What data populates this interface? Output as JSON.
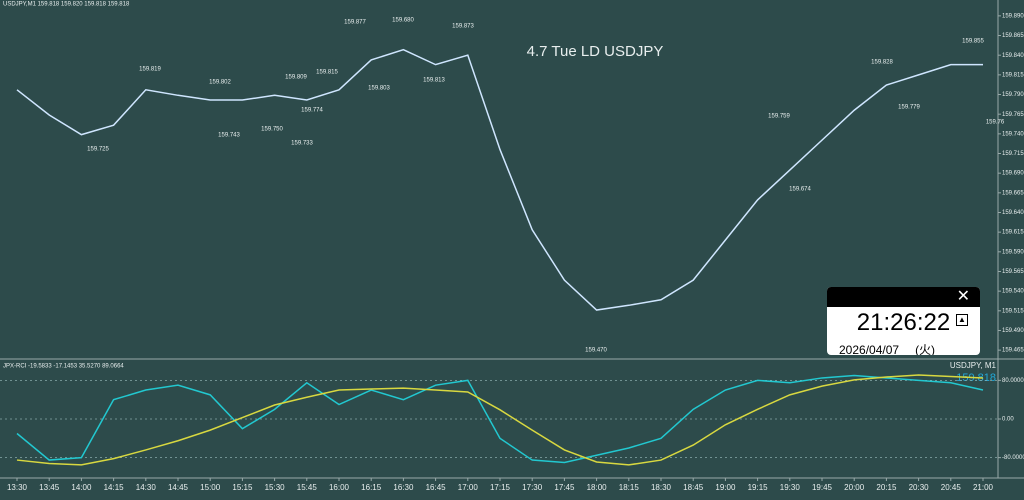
{
  "chart_data": [
    {
      "type": "line",
      "title": "4.7 Tue LD USDJPY",
      "subtitle": "USDJPY,M1  159.818 159.820 159.818 159.818",
      "categories": [
        "13:30",
        "13:45",
        "14:00",
        "14:15",
        "14:30",
        "14:45",
        "15:00",
        "15:15",
        "15:30",
        "15:45",
        "16:00",
        "16:15",
        "16:30",
        "16:45",
        "17:00",
        "17:15",
        "17:30",
        "17:45",
        "18:00",
        "18:15",
        "18:30",
        "18:45",
        "19:00",
        "19:15",
        "19:30",
        "19:45",
        "20:00",
        "20:15",
        "20:30",
        "20:45",
        "21:00"
      ],
      "series": [
        {
          "name": "USDJPY",
          "color": "#cfe6ff",
          "values": [
            159.796,
            159.764,
            159.739,
            159.751,
            159.796,
            159.789,
            159.783,
            159.783,
            159.789,
            159.783,
            159.796,
            159.834,
            159.847,
            159.828,
            159.84,
            159.72,
            159.618,
            159.554,
            159.516,
            159.522,
            159.529,
            159.554,
            159.605,
            159.656,
            159.694,
            159.732,
            159.77,
            159.802,
            159.815,
            159.828,
            159.828
          ]
        }
      ],
      "ylim": [
        159.455,
        159.9
      ],
      "yticks": [
        {
          "value": 159.89,
          "label": "159.890"
        },
        {
          "value": 159.865,
          "label": "159.865"
        },
        {
          "value": 159.84,
          "label": "159.840"
        },
        {
          "value": 159.815,
          "label": "159.815"
        },
        {
          "value": 159.79,
          "label": "159.790"
        },
        {
          "value": 159.765,
          "label": "159.765"
        },
        {
          "value": 159.74,
          "label": "159.740"
        },
        {
          "value": 159.715,
          "label": "159.715"
        },
        {
          "value": 159.69,
          "label": "159.690"
        },
        {
          "value": 159.665,
          "label": "159.665"
        },
        {
          "value": 159.64,
          "label": "159.640"
        },
        {
          "value": 159.615,
          "label": "159.615"
        },
        {
          "value": 159.59,
          "label": "159.590"
        },
        {
          "value": 159.565,
          "label": "159.565"
        },
        {
          "value": 159.54,
          "label": "159.540"
        },
        {
          "value": 159.515,
          "label": "159.515"
        },
        {
          "value": 159.49,
          "label": "159.490"
        },
        {
          "value": 159.465,
          "label": "159.465"
        }
      ],
      "annotations": [
        "159.819",
        "159.725",
        "159.802",
        "159.743",
        "159.809",
        "159.750",
        "159.733",
        "159.815",
        "159.774",
        "159.877",
        "159.680",
        "159.803",
        "159.813",
        "159.873",
        "159.470",
        "159.828",
        "159.779",
        "159.855",
        "159.759",
        "159.674",
        "159.76"
      ]
    },
    {
      "type": "line",
      "title": "JPX-RCI -19.5833 -17.1453 35.5270 89.0664",
      "symbol": "USDJPY, M1",
      "last_price": "159.818",
      "series": [
        {
          "name": "RCI mid",
          "color": "#22c8d0",
          "values": [
            -30,
            -85,
            -80,
            40,
            60,
            70,
            50,
            -20,
            20,
            75,
            30,
            60,
            40,
            70,
            80,
            -40,
            -85,
            -90,
            -75,
            -60,
            -40,
            20,
            60,
            80,
            75,
            85,
            90,
            85,
            80,
            75,
            60
          ]
        },
        {
          "name": "RCI long",
          "color": "#d8d840",
          "values": [
            -85,
            -92,
            -95,
            -82,
            -64,
            -45,
            -23,
            3,
            29,
            45,
            60,
            62,
            64,
            60,
            56,
            19,
            -23,
            -64,
            -89,
            -95,
            -85,
            -54,
            -12,
            20,
            50,
            68,
            81,
            87,
            91,
            88,
            85
          ]
        }
      ],
      "ylim": [
        -118,
        118
      ],
      "yticks": [
        {
          "value": 80,
          "label": "80.0000"
        },
        {
          "value": 0,
          "label": "0.00"
        },
        {
          "value": -80,
          "label": "-80.0000"
        }
      ]
    }
  ],
  "clock": {
    "time": "21:26:22",
    "date": "2026/04/07",
    "weekday": "(火)"
  }
}
